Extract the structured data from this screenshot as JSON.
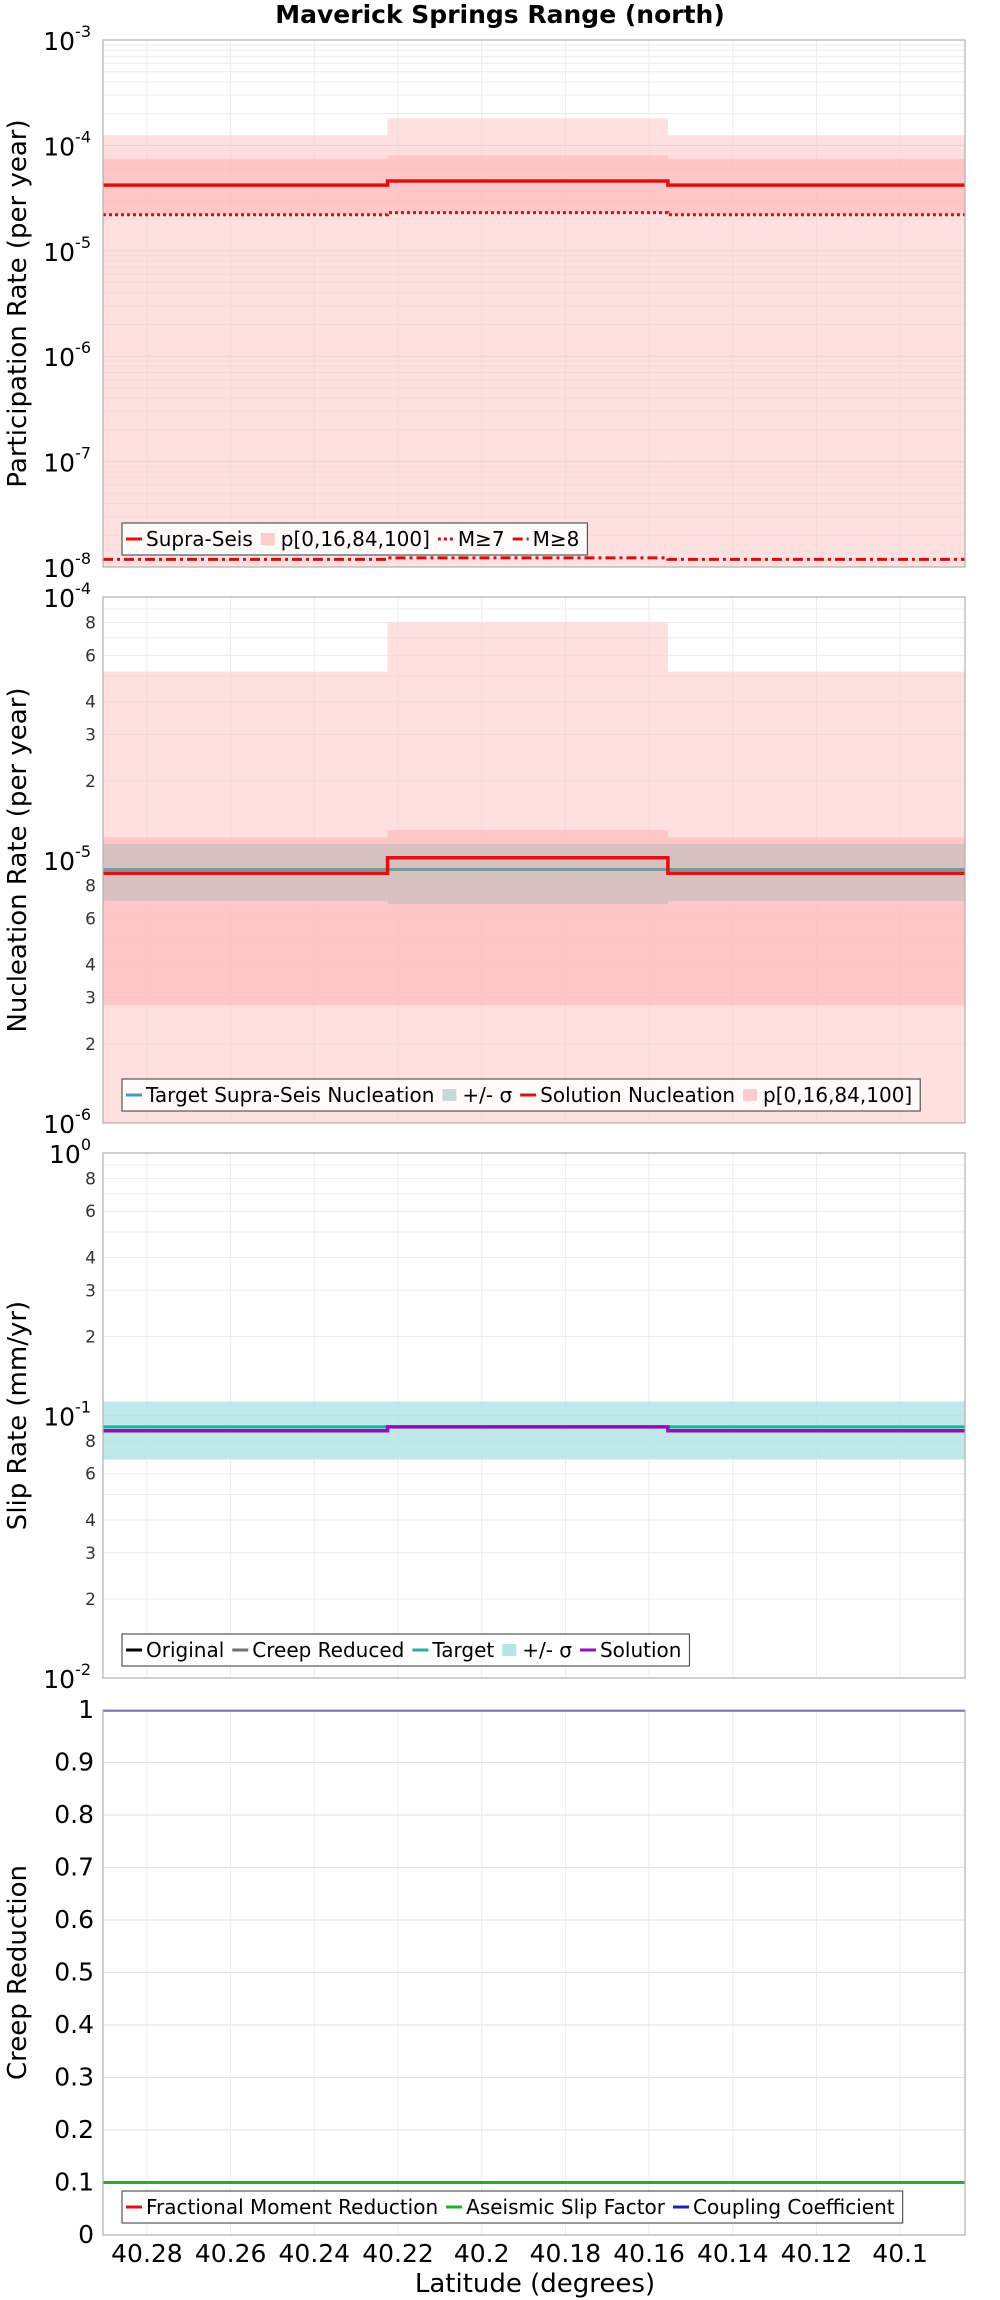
{
  "figure": {
    "title": "Maverick Springs Range (north)",
    "xlabel": "Latitude (degrees)",
    "x_ticks": [
      "40.28",
      "40.26",
      "40.24",
      "40.22",
      "40.2",
      "40.18",
      "40.16",
      "40.14",
      "40.12",
      "40.1"
    ],
    "x_tick_values": [
      40.28,
      40.26,
      40.24,
      40.22,
      40.2,
      40.18,
      40.16,
      40.14,
      40.12,
      40.1
    ],
    "x_range": [
      40.2905,
      40.0845
    ]
  },
  "chart_data": [
    {
      "type": "line",
      "name": "participation",
      "ylabel": "Participation Rate (per year)",
      "yscale": "log",
      "ylim": [
        1e-08,
        0.001
      ],
      "x_breaks": [
        40.2905,
        40.2225,
        40.1555,
        40.0845
      ],
      "bands": [
        {
          "name": "p[0,16,84,100] outer",
          "color": "#ffcccc",
          "opacity": 0.6,
          "lower": [
            1e-08,
            1e-08,
            1e-08
          ],
          "upper": [
            0.000125,
            0.00018,
            0.000125
          ]
        },
        {
          "name": "p[0,16,84,100] inner",
          "color": "#ffb3b3",
          "opacity": 0.55,
          "lower": [
            2.2e-05,
            2.3e-05,
            2.2e-05
          ],
          "upper": [
            7.5e-05,
            8e-05,
            7.5e-05
          ]
        }
      ],
      "series": [
        {
          "name": "Supra-Seis",
          "color": "#e01010",
          "dash": "",
          "width": 3.5,
          "values": [
            4.2e-05,
            4.6e-05,
            4.2e-05
          ]
        },
        {
          "name": "M≥7",
          "color": "#d01010",
          "dash": "3,3",
          "width": 3,
          "values": [
            2.2e-05,
            2.3e-05,
            2.2e-05
          ]
        },
        {
          "name": "M≥8",
          "color": "#d01010",
          "dash": "10,4,3,4",
          "width": 3,
          "values": [
            1.18e-08,
            1.22e-08,
            1.18e-08
          ]
        }
      ],
      "y_ticks": [
        {
          "value": 0.001,
          "base": "10",
          "exp": "-3"
        },
        {
          "value": 0.0001,
          "base": "10",
          "exp": "-4"
        },
        {
          "value": 1e-05,
          "base": "10",
          "exp": "-5"
        },
        {
          "value": 1e-06,
          "base": "10",
          "exp": "-6"
        },
        {
          "value": 1e-07,
          "base": "10",
          "exp": "-7"
        },
        {
          "value": 1e-08,
          "base": "10",
          "exp": "-8"
        }
      ],
      "y_minor_ticks": [],
      "legend": [
        {
          "label": "Supra-Seis",
          "style": "line",
          "color": "#e01010",
          "dash": ""
        },
        {
          "label": "p[0,16,84,100]",
          "style": "patch",
          "color": "#ffcccc"
        },
        {
          "label": "M≥7",
          "style": "line",
          "color": "#d01010",
          "dash": "3,3"
        },
        {
          "label": "M≥8",
          "style": "line",
          "color": "#d01010",
          "dash": "10,4,3,4"
        }
      ]
    },
    {
      "type": "line",
      "name": "nucleation",
      "ylabel": "Nucleation Rate (per year)",
      "yscale": "log",
      "ylim": [
        1e-06,
        0.0001
      ],
      "x_breaks": [
        40.2905,
        40.2225,
        40.1555,
        40.0845
      ],
      "bands": [
        {
          "name": "p[0,16,84,100] outer",
          "color": "#ffcccc",
          "opacity": 0.6,
          "lower": [
            1e-06,
            1e-06,
            1e-06
          ],
          "upper": [
            5.2e-05,
            8e-05,
            5.2e-05
          ]
        },
        {
          "name": "p[0,16,84,100] inner",
          "color": "#ffb3b3",
          "opacity": 0.55,
          "lower": [
            2.8e-06,
            2.8e-06,
            2.8e-06
          ],
          "upper": [
            1.22e-05,
            1.3e-05,
            1.22e-05
          ]
        },
        {
          "name": "+/- σ",
          "color": "#aabbbb",
          "opacity": 0.45,
          "lower": [
            7e-06,
            6.8e-06,
            7e-06
          ],
          "upper": [
            1.15e-05,
            1.15e-05,
            1.15e-05
          ]
        }
      ],
      "series": [
        {
          "name": "Target Supra-Seis Nucleation",
          "color": "#7a9a9a",
          "dash": "",
          "width": 3,
          "values": [
            9.2e-06,
            9.2e-06,
            9.2e-06
          ]
        },
        {
          "name": "Solution Nucleation",
          "color": "#e01010",
          "dash": "",
          "width": 3.5,
          "values": [
            8.9e-06,
            1.02e-05,
            8.9e-06
          ]
        }
      ],
      "y_ticks": [
        {
          "value": 0.0001,
          "base": "10",
          "exp": "-4"
        },
        {
          "value": 1e-05,
          "base": "10",
          "exp": "-5"
        },
        {
          "value": 1e-06,
          "base": "10",
          "exp": "-6"
        }
      ],
      "y_minor_ticks": [
        {
          "value": 8e-05,
          "label": "8"
        },
        {
          "value": 6e-05,
          "label": "6"
        },
        {
          "value": 4e-05,
          "label": "4"
        },
        {
          "value": 3e-05,
          "label": "3"
        },
        {
          "value": 2e-05,
          "label": "2"
        },
        {
          "value": 8e-06,
          "label": "8"
        },
        {
          "value": 6e-06,
          "label": "6"
        },
        {
          "value": 4e-06,
          "label": "4"
        },
        {
          "value": 3e-06,
          "label": "3"
        },
        {
          "value": 2e-06,
          "label": "2"
        }
      ],
      "legend": [
        {
          "label": "Target Supra-Seis Nucleation",
          "style": "line",
          "color": "#3aa0c0",
          "dash": ""
        },
        {
          "label": "+/- σ",
          "style": "patch",
          "color": "#c8d8d8"
        },
        {
          "label": "Solution Nucleation",
          "style": "line",
          "color": "#e01010",
          "dash": ""
        },
        {
          "label": "p[0,16,84,100]",
          "style": "patch",
          "color": "#ffcccc"
        }
      ]
    },
    {
      "type": "line",
      "name": "slip",
      "ylabel": "Slip Rate (mm/yr)",
      "yscale": "log",
      "ylim": [
        0.01,
        1
      ],
      "x_breaks": [
        40.2905,
        40.2225,
        40.1555,
        40.0845
      ],
      "bands": [
        {
          "name": "+/- σ",
          "color": "#b4e4e4",
          "opacity": 0.85,
          "lower": [
            0.068,
            0.068,
            0.068
          ],
          "upper": [
            0.113,
            0.113,
            0.113
          ]
        }
      ],
      "series": [
        {
          "name": "Target",
          "color": "#20b0a0",
          "dash": "",
          "width": 3,
          "values": [
            0.0905,
            0.0905,
            0.0905
          ]
        },
        {
          "name": "Solution",
          "color": "#9010c0",
          "dash": "",
          "width": 3.5,
          "values": [
            0.0875,
            0.0905,
            0.0875
          ]
        }
      ],
      "y_ticks": [
        {
          "value": 1,
          "base": "10",
          "exp": "0"
        },
        {
          "value": 0.1,
          "base": "10",
          "exp": "-1"
        },
        {
          "value": 0.01,
          "base": "10",
          "exp": "-2"
        }
      ],
      "y_minor_ticks": [
        {
          "value": 0.8,
          "label": "8"
        },
        {
          "value": 0.6,
          "label": "6"
        },
        {
          "value": 0.4,
          "label": "4"
        },
        {
          "value": 0.3,
          "label": "3"
        },
        {
          "value": 0.2,
          "label": "2"
        },
        {
          "value": 0.08,
          "label": "8"
        },
        {
          "value": 0.06,
          "label": "6"
        },
        {
          "value": 0.04,
          "label": "4"
        },
        {
          "value": 0.03,
          "label": "3"
        },
        {
          "value": 0.02,
          "label": "2"
        }
      ],
      "legend": [
        {
          "label": "Original",
          "style": "line",
          "color": "#000000",
          "dash": ""
        },
        {
          "label": "Creep Reduced",
          "style": "line",
          "color": "#707070",
          "dash": ""
        },
        {
          "label": "Target",
          "style": "line",
          "color": "#20b0a0",
          "dash": ""
        },
        {
          "label": "+/- σ",
          "style": "patch",
          "color": "#b4e4e4"
        },
        {
          "label": "Solution",
          "style": "line",
          "color": "#9010c0",
          "dash": ""
        }
      ]
    },
    {
      "type": "line",
      "name": "creep",
      "ylabel": "Creep Reduction",
      "yscale": "linear",
      "ylim": [
        0,
        1
      ],
      "x_breaks": [
        40.2905,
        40.2225,
        40.1555,
        40.0845
      ],
      "bands": [],
      "series": [
        {
          "name": "Fractional Moment Reduction",
          "color": "#e01010",
          "dash": "",
          "width": 3,
          "values": [
            0.1,
            0.1,
            0.1
          ]
        },
        {
          "name": "Aseismic Slip Factor",
          "color": "#20b020",
          "dash": "",
          "width": 3,
          "values": [
            0.1,
            0.1,
            0.1
          ]
        },
        {
          "name": "Coupling Coefficient",
          "color": "#2020b0",
          "dash": "",
          "width": 3,
          "values": [
            1.0,
            1.0,
            1.0
          ]
        }
      ],
      "y_ticks": [
        {
          "value": 1,
          "label": "1"
        },
        {
          "value": 0.9,
          "label": "0.9"
        },
        {
          "value": 0.8,
          "label": "0.8"
        },
        {
          "value": 0.7,
          "label": "0.7"
        },
        {
          "value": 0.6,
          "label": "0.6"
        },
        {
          "value": 0.5,
          "label": "0.5"
        },
        {
          "value": 0.4,
          "label": "0.4"
        },
        {
          "value": 0.3,
          "label": "0.3"
        },
        {
          "value": 0.2,
          "label": "0.2"
        },
        {
          "value": 0.1,
          "label": "0.1"
        },
        {
          "value": 0,
          "label": "0"
        }
      ],
      "y_minor_ticks": [],
      "legend": [
        {
          "label": "Fractional Moment Reduction",
          "style": "line",
          "color": "#e01010",
          "dash": ""
        },
        {
          "label": "Aseismic Slip Factor",
          "style": "line",
          "color": "#20b020",
          "dash": ""
        },
        {
          "label": "Coupling Coefficient",
          "style": "line",
          "color": "#2020b0",
          "dash": ""
        }
      ]
    }
  ]
}
